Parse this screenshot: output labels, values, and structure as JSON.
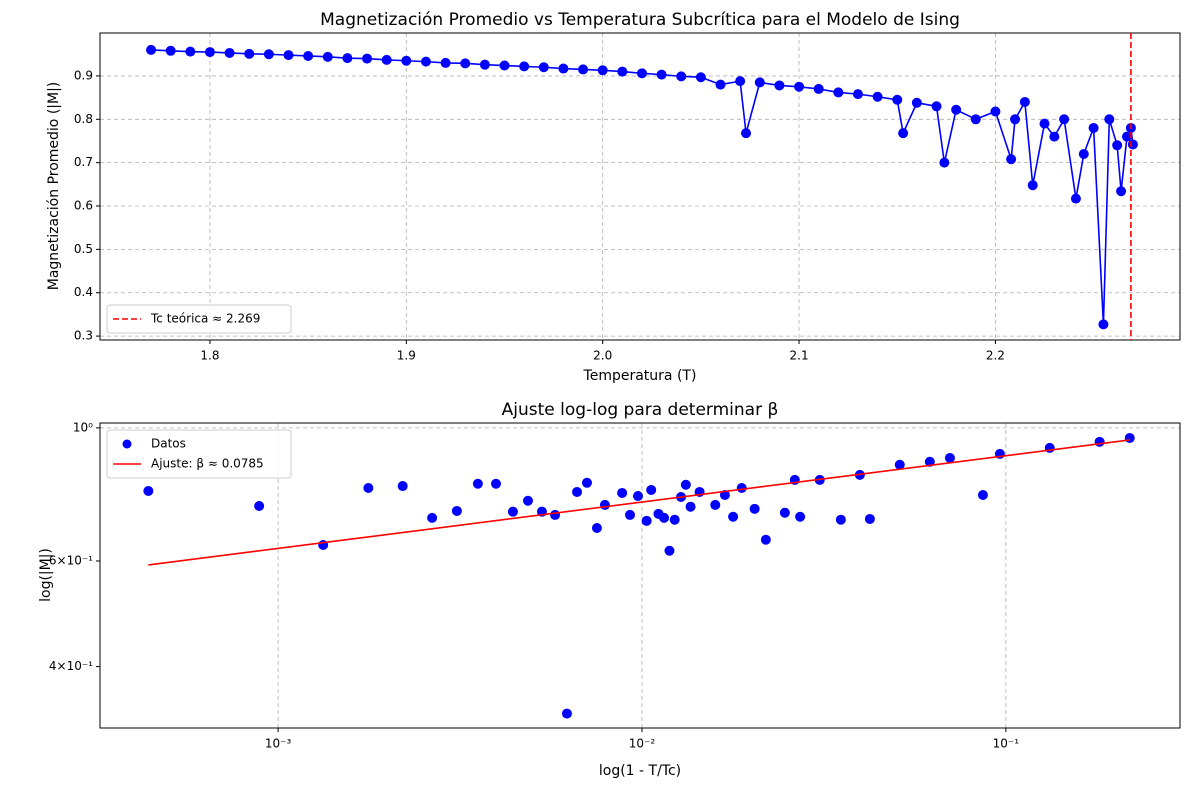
{
  "chart_data": [
    {
      "type": "line",
      "title": "Magnetización Promedio vs Temperatura Subcrítica para el Modelo de Ising",
      "x_label": "Temperatura (T)",
      "y_label": "Magnetización Promedio (|M|)",
      "xlim": [
        1.744,
        2.294
      ],
      "ylim": [
        0.291,
        0.999
      ],
      "xticks": [
        1.8,
        1.9,
        {
          "value": 2.0,
          "label": "2.0"
        },
        2.1,
        2.2
      ],
      "yticks": [
        0.3,
        0.4,
        0.5,
        0.6,
        0.7,
        0.8,
        0.9
      ],
      "grid": true,
      "legend": "lower left",
      "series": [
        {
          "type": "line",
          "color": "blue",
          "x": [
            1.77,
            1.78,
            1.79,
            1.8,
            1.81,
            1.82,
            1.83,
            1.84,
            1.85,
            1.86,
            1.87,
            1.88,
            1.89,
            1.9,
            1.91,
            1.92,
            1.93,
            1.94,
            1.95,
            1.96,
            1.97,
            1.98,
            1.99,
            2.0,
            2.01,
            2.02,
            2.03,
            2.04,
            2.05,
            2.06,
            2.07,
            2.073,
            2.08,
            2.09,
            2.1,
            2.11,
            2.12,
            2.13,
            2.14,
            2.15,
            2.153,
            2.16,
            2.17,
            2.174,
            2.18,
            2.19,
            2.2,
            2.208,
            2.21,
            2.215,
            2.219,
            2.225,
            2.23,
            2.235,
            2.241,
            2.245,
            2.25,
            2.255,
            2.258,
            2.262,
            2.264,
            2.267,
            2.269,
            2.27
          ],
          "values": [
            0.96,
            0.958,
            0.956,
            0.955,
            0.953,
            0.951,
            0.95,
            0.948,
            0.946,
            0.944,
            0.941,
            0.94,
            0.937,
            0.935,
            0.933,
            0.93,
            0.929,
            0.926,
            0.924,
            0.922,
            0.92,
            0.917,
            0.915,
            0.913,
            0.91,
            0.906,
            0.903,
            0.899,
            0.897,
            0.88,
            0.888,
            0.768,
            0.885,
            0.878,
            0.875,
            0.87,
            0.862,
            0.858,
            0.852,
            0.845,
            0.768,
            0.838,
            0.83,
            0.7,
            0.822,
            0.8,
            0.818,
            0.708,
            0.8,
            0.84,
            0.648,
            0.79,
            0.76,
            0.8,
            0.617,
            0.72,
            0.78,
            0.327,
            0.8,
            0.74,
            0.634,
            0.76,
            0.78,
            0.742
          ]
        }
      ],
      "reference_lines": [
        {
          "name": "Tc teórica ≈ 2.269",
          "x": 2.269,
          "color": "red",
          "style": "dashed"
        }
      ]
    },
    {
      "type": "scatter",
      "title": "Ajuste log-log para determinar β",
      "x_label": "log(1 - T/Tc)",
      "y_label": "log(|M|)",
      "xscale": "log",
      "yscale": "log",
      "xlim": [
        0.000324,
        0.301
      ],
      "ylim": [
        0.316,
        1.019
      ],
      "xticks": [
        {
          "value": 0.001,
          "label": "10⁻³"
        },
        {
          "value": 0.01,
          "label": "10⁻²"
        },
        {
          "value": 0.1,
          "label": "10⁻¹"
        }
      ],
      "yticks": [
        {
          "value": 1,
          "label": "10⁰"
        },
        {
          "value": 0.6,
          "label": "6×10⁻¹"
        },
        {
          "value": 0.4,
          "label": "4×10⁻¹"
        }
      ],
      "grid": true,
      "legend": "upper left",
      "series": [
        {
          "name": "Datos",
          "type": "scatter",
          "color": "blue",
          "x": [
            0.00044,
            0.000887,
            0.00133,
            0.00177,
            0.0022,
            0.00265,
            0.0031,
            0.00354,
            0.00397,
            0.00442,
            0.00486,
            0.00531,
            0.00577,
            0.00622,
            0.00663,
            0.00706,
            0.00752,
            0.00791,
            0.00882,
            0.00927,
            0.00975,
            0.0103,
            0.0106,
            0.0111,
            0.0115,
            0.0119,
            0.0123,
            0.0128,
            0.0132,
            0.0136,
            0.0144,
            0.0159,
            0.0169,
            0.0178,
            0.0188,
            0.0204,
            0.0219,
            0.0247,
            0.0263,
            0.0272,
            0.0308,
            0.0352,
            0.0397,
            0.0423,
            0.0511,
            0.0618,
            0.0702,
            0.0865,
            0.0963,
            0.132,
            0.181,
            0.219
          ],
          "values": [
            0.785,
            0.741,
            0.638,
            0.794,
            0.8,
            0.708,
            0.727,
            0.807,
            0.807,
            0.725,
            0.756,
            0.725,
            0.716,
            0.334,
            0.782,
            0.81,
            0.681,
            0.744,
            0.779,
            0.716,
            0.77,
            0.7,
            0.788,
            0.719,
            0.708,
            0.624,
            0.703,
            0.767,
            0.804,
            0.739,
            0.782,
            0.744,
            0.773,
            0.711,
            0.794,
            0.733,
            0.651,
            0.722,
            0.819,
            0.711,
            0.819,
            0.703,
            0.835,
            0.705,
            0.868,
            0.878,
            0.891,
            0.773,
            0.905,
            0.926,
            0.948,
            0.962
          ]
        },
        {
          "name": "Ajuste: β ≈ 0.0785",
          "type": "line",
          "color": "red",
          "x": [
            0.00044,
            0.219
          ],
          "values": [
            0.591,
            0.955
          ]
        }
      ]
    }
  ]
}
